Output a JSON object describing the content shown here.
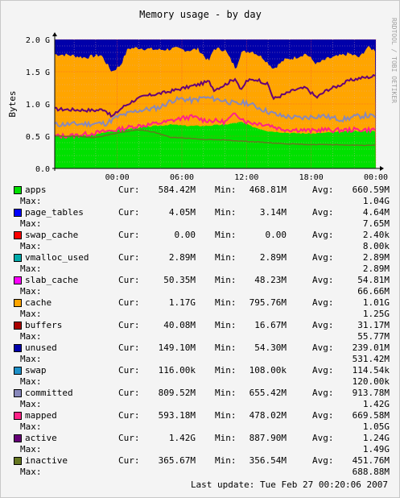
{
  "chart_data": {
    "type": "area",
    "title": "Memory usage - by day",
    "ylabel": "Bytes",
    "side_text": "RRDTOOL / TOBI OETIKER",
    "yticks": [
      "0.0",
      "0.5 G",
      "1.0 G",
      "1.5 G",
      "2.0 G"
    ],
    "ylim": [
      0,
      2.0
    ],
    "xticks": [
      "00:00",
      "06:00",
      "12:00",
      "18:00",
      "00:00"
    ],
    "x_hours": [
      0,
      6,
      12,
      18,
      24
    ],
    "xlim": [
      -5.8,
      24
    ],
    "grid": true,
    "stack_order": [
      "apps",
      "page_tables",
      "swap_cache",
      "vmalloc_used",
      "slab_cache",
      "cache",
      "buffers",
      "unused"
    ],
    "line_series": [
      "swap",
      "committed",
      "mapped",
      "active",
      "inactive"
    ],
    "legend_columns": {
      "cur": "Cur:",
      "min": "Min:",
      "avg": "Avg:",
      "max": "Max:"
    },
    "series": [
      {
        "name": "apps",
        "color": "#00e000",
        "cur": "584.42M",
        "min": "468.81M",
        "avg": "660.59M",
        "max": "1.04G"
      },
      {
        "name": "page_tables",
        "color": "#0000ff",
        "cur": "4.05M",
        "min": "3.14M",
        "avg": "4.64M",
        "max": "7.65M"
      },
      {
        "name": "swap_cache",
        "color": "#ff0000",
        "cur": "0.00",
        "min": "0.00",
        "avg": "2.40k",
        "max": "8.00k"
      },
      {
        "name": "vmalloc_used",
        "color": "#00aaaa",
        "cur": "2.89M",
        "min": "2.89M",
        "avg": "2.89M",
        "max": "2.89M"
      },
      {
        "name": "slab_cache",
        "color": "#ff00ff",
        "cur": "50.35M",
        "min": "48.23M",
        "avg": "54.81M",
        "max": "66.66M"
      },
      {
        "name": "cache",
        "color": "#ffa500",
        "cur": "1.17G",
        "min": "795.76M",
        "avg": "1.01G",
        "max": "1.25G"
      },
      {
        "name": "buffers",
        "color": "#aa0000",
        "cur": "40.08M",
        "min": "16.67M",
        "avg": "31.17M",
        "max": "55.77M"
      },
      {
        "name": "unused",
        "color": "#0000aa",
        "cur": "149.10M",
        "min": "54.30M",
        "avg": "239.01M",
        "max": "531.42M"
      },
      {
        "name": "swap",
        "color": "#1e90c8",
        "cur": "116.00k",
        "min": "108.00k",
        "avg": "114.54k",
        "max": "120.00k"
      },
      {
        "name": "committed",
        "color": "#8888bb",
        "cur": "809.52M",
        "min": "655.42M",
        "avg": "913.78M",
        "max": "1.42G"
      },
      {
        "name": "mapped",
        "color": "#ff2288",
        "cur": "593.18M",
        "min": "478.02M",
        "avg": "669.58M",
        "max": "1.05G"
      },
      {
        "name": "active",
        "color": "#660077",
        "cur": "1.42G",
        "min": "887.90M",
        "avg": "1.24G",
        "max": "1.49G"
      },
      {
        "name": "inactive",
        "color": "#667722",
        "cur": "365.67M",
        "min": "356.54M",
        "avg": "451.76M",
        "max": "688.88M"
      }
    ],
    "curves_g": [
      {
        "name": "apps",
        "points": [
          [
            -5.8,
            0.5
          ],
          [
            -4,
            0.5
          ],
          [
            -2,
            0.53
          ],
          [
            0,
            0.6
          ],
          [
            1.5,
            0.62
          ],
          [
            3,
            0.65
          ],
          [
            5,
            0.68
          ],
          [
            6.5,
            0.66
          ],
          [
            8,
            0.66
          ],
          [
            10,
            0.68
          ],
          [
            11.5,
            0.72
          ],
          [
            12.5,
            0.65
          ],
          [
            14,
            0.58
          ],
          [
            16,
            0.55
          ],
          [
            18,
            0.54
          ],
          [
            20,
            0.56
          ],
          [
            22,
            0.58
          ],
          [
            24,
            0.58
          ]
        ]
      },
      {
        "name": "cache_top",
        "points": [
          [
            -5.8,
            1.77
          ],
          [
            -4.5,
            1.76
          ],
          [
            -3,
            1.72
          ],
          [
            -1.5,
            1.76
          ],
          [
            -0.5,
            1.5
          ],
          [
            0.3,
            1.6
          ],
          [
            1,
            1.86
          ],
          [
            2,
            1.87
          ],
          [
            3,
            1.85
          ],
          [
            4,
            1.84
          ],
          [
            5.5,
            1.86
          ],
          [
            6.5,
            1.83
          ],
          [
            7.5,
            1.85
          ],
          [
            8.5,
            1.66
          ],
          [
            9,
            1.86
          ],
          [
            10,
            1.84
          ],
          [
            11,
            1.55
          ],
          [
            11.5,
            1.8
          ],
          [
            12.5,
            1.82
          ],
          [
            13.5,
            1.72
          ],
          [
            14.5,
            1.55
          ],
          [
            15.5,
            1.68
          ],
          [
            16.5,
            1.72
          ],
          [
            17.5,
            1.78
          ],
          [
            18.5,
            1.62
          ],
          [
            19.5,
            1.7
          ],
          [
            20.5,
            1.74
          ],
          [
            21.5,
            1.78
          ],
          [
            22.5,
            1.72
          ],
          [
            23.2,
            1.88
          ],
          [
            24,
            1.83
          ]
        ]
      },
      {
        "name": "swap",
        "points": [
          [
            -5.8,
            0.0001
          ],
          [
            24,
            0.0001
          ]
        ]
      },
      {
        "name": "committed",
        "points": [
          [
            -5.8,
            0.68
          ],
          [
            -3,
            0.69
          ],
          [
            -1,
            0.7
          ],
          [
            0,
            0.8
          ],
          [
            1,
            0.85
          ],
          [
            2,
            0.9
          ],
          [
            3,
            0.92
          ],
          [
            4,
            0.95
          ],
          [
            5,
            1.05
          ],
          [
            6,
            1.08
          ],
          [
            7,
            1.05
          ],
          [
            8,
            1.1
          ],
          [
            9,
            1.08
          ],
          [
            10,
            1.05
          ],
          [
            11,
            1.0
          ],
          [
            12,
            1.02
          ],
          [
            13,
            0.95
          ],
          [
            14,
            0.88
          ],
          [
            15,
            0.82
          ],
          [
            16,
            0.8
          ],
          [
            17,
            0.78
          ],
          [
            18,
            0.8
          ],
          [
            19,
            0.82
          ],
          [
            20,
            0.78
          ],
          [
            21,
            0.76
          ],
          [
            22,
            0.8
          ],
          [
            23,
            0.82
          ],
          [
            24,
            0.8
          ]
        ]
      },
      {
        "name": "mapped",
        "points": [
          [
            -5.8,
            0.5
          ],
          [
            -4,
            0.51
          ],
          [
            -2,
            0.55
          ],
          [
            0,
            0.6
          ],
          [
            1.5,
            0.65
          ],
          [
            3,
            0.68
          ],
          [
            4.5,
            0.72
          ],
          [
            6,
            0.78
          ],
          [
            7,
            0.8
          ],
          [
            8,
            0.75
          ],
          [
            9,
            0.74
          ],
          [
            10,
            0.72
          ],
          [
            11,
            0.85
          ],
          [
            12,
            0.72
          ],
          [
            13,
            0.7
          ],
          [
            14,
            0.68
          ],
          [
            15,
            0.62
          ],
          [
            16,
            0.6
          ],
          [
            17,
            0.6
          ],
          [
            18,
            0.58
          ],
          [
            19,
            0.6
          ],
          [
            20,
            0.59
          ],
          [
            22,
            0.6
          ],
          [
            24,
            0.6
          ]
        ]
      },
      {
        "name": "active",
        "points": [
          [
            -5.8,
            0.92
          ],
          [
            -4,
            0.91
          ],
          [
            -2,
            0.9
          ],
          [
            -1.2,
            0.92
          ],
          [
            -0.5,
            0.8
          ],
          [
            0.5,
            0.95
          ],
          [
            1.5,
            1.05
          ],
          [
            2.5,
            1.12
          ],
          [
            3.5,
            1.15
          ],
          [
            4.5,
            1.18
          ],
          [
            5.5,
            1.22
          ],
          [
            6.5,
            1.26
          ],
          [
            7.5,
            1.3
          ],
          [
            8.5,
            1.35
          ],
          [
            9,
            1.22
          ],
          [
            10,
            1.3
          ],
          [
            11,
            1.4
          ],
          [
            11.5,
            1.2
          ],
          [
            12,
            1.36
          ],
          [
            13,
            1.38
          ],
          [
            14,
            1.3
          ],
          [
            14.5,
            1.08
          ],
          [
            15.5,
            1.15
          ],
          [
            16.5,
            1.22
          ],
          [
            17.5,
            1.25
          ],
          [
            18.5,
            1.1
          ],
          [
            19.5,
            1.22
          ],
          [
            20.5,
            1.28
          ],
          [
            21.5,
            1.36
          ],
          [
            22.5,
            1.4
          ],
          [
            23.5,
            1.42
          ],
          [
            24,
            1.44
          ]
        ]
      },
      {
        "name": "inactive",
        "points": [
          [
            -5.8,
            0.5
          ],
          [
            -4,
            0.5
          ],
          [
            -2,
            0.48
          ],
          [
            0,
            0.55
          ],
          [
            2,
            0.6
          ],
          [
            3.5,
            0.56
          ],
          [
            5,
            0.48
          ],
          [
            6.5,
            0.47
          ],
          [
            8,
            0.45
          ],
          [
            10,
            0.44
          ],
          [
            12,
            0.42
          ],
          [
            14,
            0.4
          ],
          [
            16,
            0.38
          ],
          [
            18,
            0.37
          ],
          [
            20,
            0.37
          ],
          [
            22,
            0.36
          ],
          [
            24,
            0.36
          ]
        ]
      }
    ],
    "last_update_label": "Last update:",
    "last_update_value": "Tue Feb 27 00:20:06 2007"
  }
}
